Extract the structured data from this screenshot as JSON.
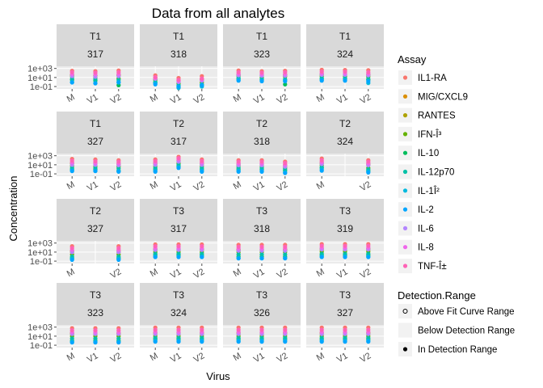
{
  "chart_data": {
    "type": "scatter",
    "title": "Data from all analytes",
    "xlabel": "Virus",
    "ylabel": "Concentration",
    "x_categories": [
      "M",
      "V1",
      "V2"
    ],
    "y_scale": "log10",
    "y_ticks": [
      {
        "value": 1000,
        "label": "1e+03"
      },
      {
        "value": 10,
        "label": "1e+01"
      },
      {
        "value": 0.1,
        "label": "1e-01"
      }
    ],
    "ylim": [
      0.03,
      3000
    ],
    "grid": true,
    "legend_position": "right",
    "assays": [
      {
        "name": "IL1-RA",
        "color": "#F8766D"
      },
      {
        "name": "MIG/CXCL9",
        "color": "#DB8E00"
      },
      {
        "name": "RANTES",
        "color": "#AEA200"
      },
      {
        "name": "IFN-Î³",
        "color": "#64B200"
      },
      {
        "name": "IL-10",
        "color": "#00BD5C"
      },
      {
        "name": "IL-12p70",
        "color": "#00C1A7"
      },
      {
        "name": "IL-1Î²",
        "color": "#00BADE"
      },
      {
        "name": "IL-2",
        "color": "#00A6FF"
      },
      {
        "name": "IL-6",
        "color": "#B385FF"
      },
      {
        "name": "IL-8",
        "color": "#EF67EB"
      },
      {
        "name": "TNF-Î±",
        "color": "#FF63B6"
      }
    ],
    "detection_ranges": [
      {
        "name": "Above Fit Curve Range",
        "shape": "open-circle"
      },
      {
        "name": "Below Detection Range",
        "shape": "none"
      },
      {
        "name": "In Detection Range",
        "shape": "filled-circle"
      }
    ],
    "facets": [
      {
        "time": "T1",
        "subject": "317",
        "viruses": [
          "M",
          "V1",
          "V2"
        ],
        "values": {
          "M": [
            300,
            40,
            25,
            15,
            3,
            5,
            1,
            0.8,
            20,
            60,
            150
          ],
          "V1": [
            250,
            30,
            20,
            10,
            2,
            4,
            0.6,
            0.5,
            15,
            50,
            120
          ],
          "V2": [
            350,
            40,
            25,
            6,
            0.2,
            3,
            1,
            0.8,
            20,
            60,
            150
          ]
        }
      },
      {
        "time": "T1",
        "subject": "318",
        "viruses": [
          "M",
          "V1",
          "V2"
        ],
        "values": {
          "M": [
            30,
            10,
            5,
            3,
            1,
            0.8,
            0.5,
            0.3,
            5,
            8,
            12
          ],
          "V1": [
            8,
            2,
            1,
            0.5,
            0.1,
            0.2,
            0.05,
            0.1,
            1,
            2,
            3
          ],
          "V2": [
            20,
            5,
            3,
            0.8,
            0.2,
            0.3,
            0.1,
            0.2,
            2,
            4,
            6
          ]
        }
      },
      {
        "time": "T1",
        "subject": "323",
        "viruses": [
          "M",
          "V1",
          "V2"
        ],
        "values": {
          "M": [
            350,
            50,
            30,
            20,
            5,
            8,
            3,
            2,
            30,
            70,
            150
          ],
          "V1": [
            250,
            40,
            30,
            10,
            3,
            5,
            2,
            1.5,
            25,
            60,
            120
          ],
          "V2": [
            300,
            45,
            30,
            15,
            0.3,
            4,
            2,
            1.5,
            25,
            60,
            150
          ]
        }
      },
      {
        "time": "T1",
        "subject": "324",
        "viruses": [
          "M",
          "V1",
          "V2"
        ],
        "values": {
          "M": [
            500,
            60,
            40,
            20,
            5,
            8,
            3,
            2,
            40,
            90,
            200
          ],
          "V1": [
            450,
            60,
            40,
            20,
            5,
            8,
            3,
            2,
            40,
            90,
            200
          ],
          "V2": [
            400,
            50,
            30,
            15,
            3,
            5,
            0.6,
            1.5,
            30,
            70,
            150
          ]
        }
      },
      {
        "time": "T1",
        "subject": "327",
        "viruses": [
          "M",
          "V1",
          "V2"
        ],
        "values": {
          "M": [
            200,
            30,
            20,
            6,
            1,
            2,
            0.6,
            0.4,
            10,
            30,
            80
          ],
          "V1": [
            150,
            25,
            15,
            5,
            1,
            2,
            0.5,
            0.4,
            10,
            25,
            60
          ],
          "V2": [
            100,
            20,
            10,
            4,
            0.5,
            1.5,
            0.4,
            0.3,
            8,
            20,
            50
          ]
        }
      },
      {
        "time": "T2",
        "subject": "317",
        "viruses": [
          "M",
          "V1",
          "V2"
        ],
        "values": {
          "M": [
            150,
            30,
            15,
            5,
            1,
            2,
            0.5,
            0.3,
            10,
            30,
            70
          ],
          "V1": [
            600,
            80,
            40,
            20,
            5,
            10,
            3,
            2,
            50,
            150,
            300
          ],
          "V2": [
            150,
            30,
            15,
            5,
            1,
            2,
            0.5,
            0.3,
            10,
            30,
            70
          ]
        }
      },
      {
        "time": "T2",
        "subject": "318",
        "viruses": [
          "M",
          "V1",
          "V2"
        ],
        "values": {
          "M": [
            100,
            20,
            10,
            5,
            1,
            2,
            0.5,
            0.3,
            8,
            20,
            50
          ],
          "V1": [
            100,
            20,
            10,
            5,
            1,
            2,
            0.5,
            0.3,
            8,
            20,
            50
          ],
          "V2": [
            50,
            10,
            5,
            2,
            0.5,
            1,
            0.2,
            0.15,
            4,
            10,
            25
          ]
        }
      },
      {
        "time": "T2",
        "subject": "324",
        "viruses": [
          "M",
          "V2"
        ],
        "values": {
          "M": [
            250,
            40,
            20,
            8,
            2,
            3,
            1,
            0.5,
            15,
            40,
            100
          ],
          "V2": [
            100,
            20,
            10,
            2,
            0.5,
            1,
            0.3,
            0.2,
            8,
            20,
            50
          ]
        }
      },
      {
        "time": "T2",
        "subject": "327",
        "viruses": [
          "M",
          "V2"
        ],
        "values": {
          "M": [
            200,
            20,
            10,
            3,
            0.5,
            1,
            0.3,
            0.2,
            10,
            30,
            80
          ],
          "V2": [
            200,
            25,
            10,
            3,
            0.5,
            1,
            0.3,
            0.2,
            10,
            30,
            80
          ]
        }
      },
      {
        "time": "T3",
        "subject": "317",
        "viruses": [
          "M",
          "V1",
          "V2"
        ],
        "values": {
          "M": [
            500,
            50,
            30,
            10,
            2,
            4,
            1,
            0.8,
            30,
            80,
            200
          ],
          "V1": [
            500,
            50,
            30,
            10,
            2,
            4,
            1,
            0.8,
            30,
            80,
            200
          ],
          "V2": [
            500,
            50,
            30,
            10,
            2,
            4,
            1,
            0.8,
            30,
            80,
            200
          ]
        }
      },
      {
        "time": "T3",
        "subject": "318",
        "viruses": [
          "M",
          "V1",
          "V2"
        ],
        "values": {
          "M": [
            400,
            40,
            25,
            10,
            1,
            3,
            0.5,
            0.4,
            20,
            60,
            150
          ],
          "V1": [
            400,
            40,
            25,
            10,
            1,
            3,
            0.5,
            0.4,
            20,
            60,
            150
          ],
          "V2": [
            400,
            40,
            25,
            10,
            1,
            3,
            0.5,
            0.4,
            20,
            60,
            150
          ]
        }
      },
      {
        "time": "T3",
        "subject": "319",
        "viruses": [
          "M",
          "V1",
          "V2"
        ],
        "values": {
          "M": [
            600,
            60,
            30,
            12,
            2,
            4,
            1,
            0.8,
            40,
            100,
            250
          ],
          "V1": [
            600,
            60,
            30,
            12,
            2,
            4,
            1,
            0.8,
            40,
            100,
            250
          ],
          "V2": [
            600,
            60,
            30,
            12,
            2,
            4,
            1,
            0.8,
            40,
            100,
            250
          ]
        }
      },
      {
        "time": "T3",
        "subject": "323",
        "viruses": [
          "M",
          "V1",
          "V2"
        ],
        "values": {
          "M": [
            600,
            50,
            30,
            10,
            1,
            3,
            0.6,
            0.4,
            30,
            80,
            200
          ],
          "V1": [
            600,
            50,
            30,
            10,
            1,
            3,
            0.6,
            0.4,
            30,
            80,
            200
          ],
          "V2": [
            600,
            50,
            30,
            10,
            1,
            3,
            0.6,
            0.4,
            30,
            80,
            200
          ]
        }
      },
      {
        "time": "T3",
        "subject": "324",
        "viruses": [
          "M",
          "V1",
          "V2"
        ],
        "values": {
          "M": [
            800,
            60,
            30,
            10,
            2,
            4,
            1,
            0.6,
            30,
            90,
            250
          ],
          "V1": [
            800,
            60,
            30,
            10,
            2,
            4,
            1,
            0.6,
            30,
            90,
            250
          ],
          "V2": [
            800,
            60,
            30,
            10,
            2,
            4,
            1,
            0.6,
            30,
            90,
            250
          ]
        }
      },
      {
        "time": "T3",
        "subject": "326",
        "viruses": [
          "M",
          "V1",
          "V2"
        ],
        "values": {
          "M": [
            800,
            60,
            30,
            10,
            2,
            4,
            1,
            0.6,
            30,
            90,
            250
          ],
          "V1": [
            800,
            60,
            30,
            10,
            2,
            4,
            1,
            0.6,
            30,
            90,
            250
          ],
          "V2": [
            800,
            60,
            30,
            10,
            2,
            4,
            1,
            0.6,
            30,
            90,
            250
          ]
        }
      },
      {
        "time": "T3",
        "subject": "327",
        "viruses": [
          "M",
          "V1",
          "V2"
        ],
        "values": {
          "M": [
            800,
            60,
            30,
            10,
            2,
            4,
            1,
            0.6,
            30,
            90,
            250
          ],
          "V1": [
            800,
            60,
            30,
            10,
            2,
            4,
            1,
            0.6,
            30,
            90,
            250
          ],
          "V2": [
            800,
            60,
            30,
            10,
            2,
            4,
            1,
            0.6,
            30,
            90,
            250
          ]
        }
      }
    ]
  }
}
